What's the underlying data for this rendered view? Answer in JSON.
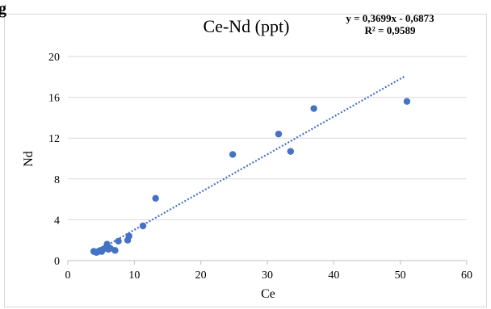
{
  "chart_data": {
    "type": "scatter",
    "title": "Ce-Nd (ppt)",
    "xlabel": "Ce",
    "ylabel": "Nd",
    "xlim": [
      0,
      60
    ],
    "ylim": [
      0,
      20
    ],
    "x_ticks": [
      0,
      10,
      20,
      30,
      40,
      50,
      60
    ],
    "y_ticks": [
      0,
      4,
      8,
      12,
      16,
      20
    ],
    "grid": "horizontal",
    "legend": "none",
    "marker_color": "#4472C4",
    "trendline": {
      "type": "linear",
      "slope": 0.3699,
      "intercept": -0.6873,
      "x_range": [
        3.8,
        50.8
      ],
      "style": "dotted",
      "color": "#4472C4",
      "equation_label": "y = 0,3699x - 0,6873",
      "r2_label": "R² = 0,9589"
    },
    "series": [
      {
        "points": [
          [
            3.9,
            0.9
          ],
          [
            4.3,
            0.8
          ],
          [
            4.6,
            0.9
          ],
          [
            4.9,
            1.0
          ],
          [
            5.1,
            0.9
          ],
          [
            5.3,
            1.1
          ],
          [
            5.6,
            1.2
          ],
          [
            5.8,
            1.3
          ],
          [
            6.1,
            1.1
          ],
          [
            6.4,
            1.2
          ],
          [
            5.9,
            1.6
          ],
          [
            7.1,
            1.0
          ],
          [
            7.6,
            1.9
          ],
          [
            9.0,
            2.0
          ],
          [
            9.2,
            2.4
          ],
          [
            11.3,
            3.4
          ],
          [
            13.2,
            6.1
          ],
          [
            24.8,
            10.4
          ],
          [
            31.7,
            12.4
          ],
          [
            33.5,
            10.7
          ],
          [
            37.0,
            14.9
          ],
          [
            51.0,
            15.6
          ]
        ]
      }
    ]
  },
  "cut_text": "g"
}
